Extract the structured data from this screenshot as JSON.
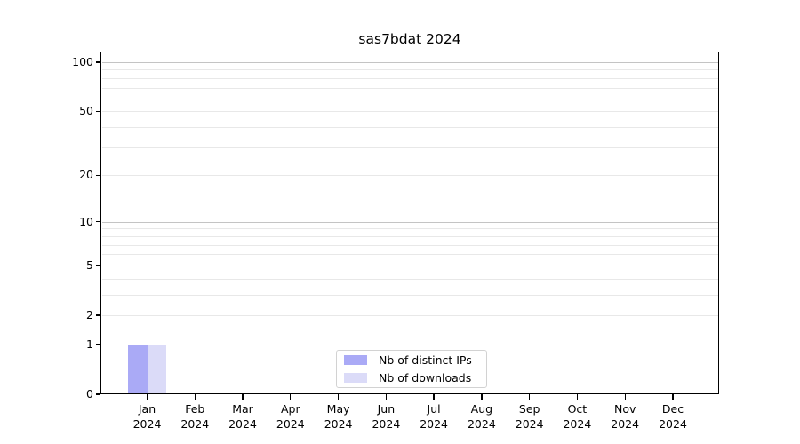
{
  "colors": {
    "bar_distinct_ips": "#aaaaf6",
    "bar_downloads": "#dbdbf8",
    "axis": "#000000",
    "grid_decade": "#c4c4c4",
    "grid_minor": "#e8e8e8",
    "legend_border": "#d2d2d2",
    "background": "#ffffff",
    "text": "#000000"
  },
  "chart_data": {
    "type": "bar",
    "title": "sas7bdat 2024",
    "categories": [
      "Jan",
      "Feb",
      "Mar",
      "Apr",
      "May",
      "Jun",
      "Jul",
      "Aug",
      "Sep",
      "Oct",
      "Nov",
      "Dec"
    ],
    "year": "2024",
    "series": [
      {
        "name": "Nb of distinct IPs",
        "color": "#aaaaf6",
        "values": [
          1,
          0,
          0,
          0,
          0,
          0,
          0,
          0,
          0,
          0,
          0,
          0
        ]
      },
      {
        "name": "Nb of downloads",
        "color": "#dbdbf8",
        "values": [
          1,
          0,
          0,
          0,
          0,
          0,
          0,
          0,
          0,
          0,
          0,
          0
        ]
      }
    ],
    "y_axis": {
      "scale": "log1p",
      "tick_values": [
        0,
        1,
        2,
        5,
        10,
        20,
        50,
        100
      ],
      "minor_tick_values": [
        3,
        4,
        6,
        7,
        8,
        9,
        30,
        40,
        60,
        70,
        80,
        90
      ],
      "decade_values": [
        1,
        10,
        100
      ],
      "range": [
        0,
        100
      ]
    },
    "grid": {
      "show": true,
      "orientation": "horizontal"
    },
    "legend_position": "lower center",
    "xlabel": "",
    "ylabel": ""
  }
}
